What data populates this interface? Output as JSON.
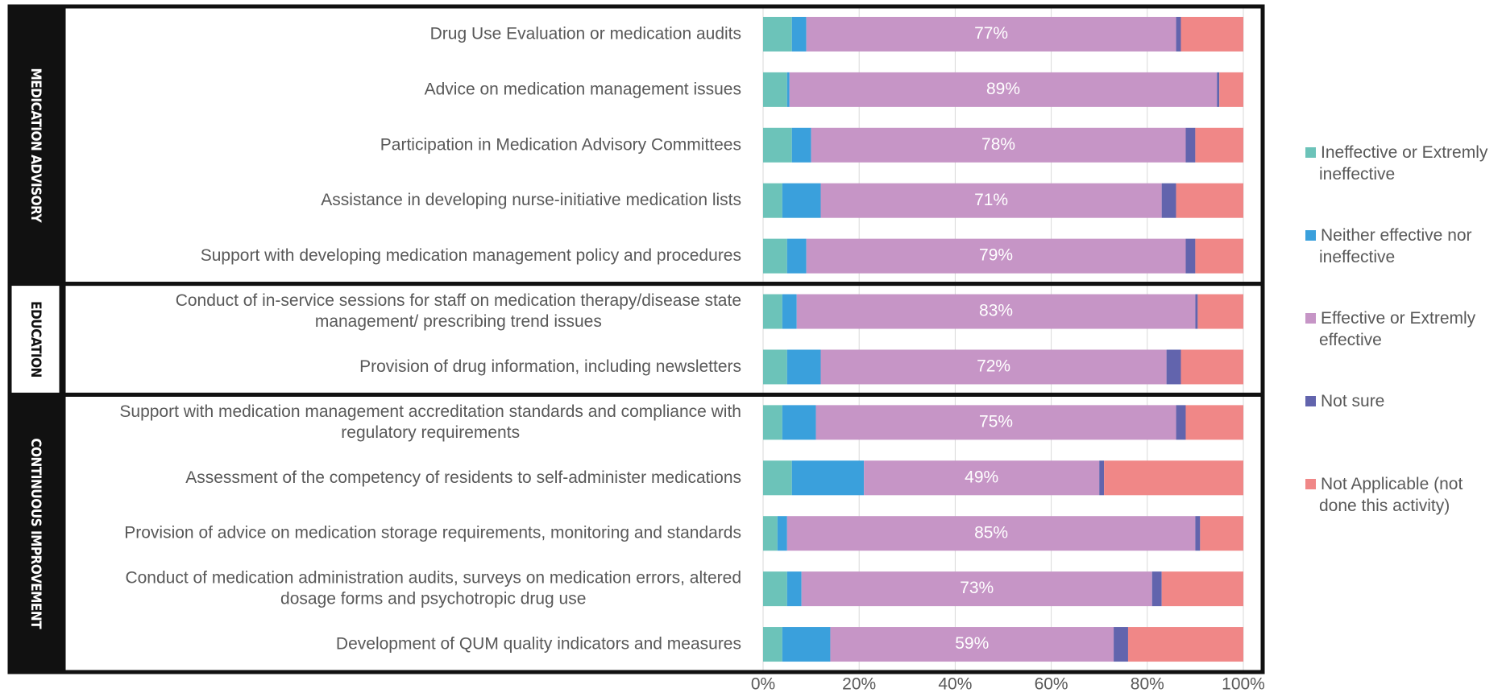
{
  "chart_data": {
    "type": "stacked_bar_horizontal",
    "groups": [
      {
        "name": "MEDICATION ADVISORY",
        "categories": [
          "Drug Use Evaluation or medication audits",
          "Advice on medication management issues",
          "Participation in Medication Advisory Committees",
          "Assistance in developing nurse-initiative medication lists",
          "Support with developing medication management policy and procedures"
        ]
      },
      {
        "name": "EDUCATION",
        "categories": [
          "Conduct of in-service sessions for staff on medication therapy/disease state management/ prescribing trend issues",
          "Provision of drug information, including newsletters"
        ]
      },
      {
        "name": "CONTINUOUS IMPROVEMENT",
        "categories": [
          "Support with medication management accreditation standards and compliance with regulatory requirements",
          "Assessment of the competency of residents to self-administer medications",
          "Provision of advice on medication storage requirements, monitoring and standards",
          "Conduct of medication administration audits, surveys on medication errors, altered dosage forms and psychotropic drug use",
          "Development of QUM quality indicators and measures"
        ]
      }
    ],
    "series": [
      {
        "name": "Ineffective or Extremly ineffective",
        "color": "#6cc3b9",
        "values": [
          6,
          5,
          6,
          4,
          5,
          4,
          5,
          4,
          6,
          3,
          5,
          4
        ]
      },
      {
        "name": "Neither effective nor ineffective",
        "color": "#3aa0dc",
        "values": [
          3,
          0.5,
          4,
          8,
          4,
          3,
          7,
          7,
          15,
          2,
          3,
          10
        ]
      },
      {
        "name": "Effective or Extremly effective",
        "color": "#c695c6",
        "values": [
          77,
          89,
          78,
          71,
          79,
          83,
          72,
          75,
          49,
          85,
          73,
          59
        ],
        "value_labels": [
          "77%",
          "89%",
          "78%",
          "71%",
          "79%",
          "83%",
          "72%",
          "75%",
          "49%",
          "85%",
          "73%",
          "59%"
        ]
      },
      {
        "name": "Not sure",
        "color": "#6264ad",
        "values": [
          1,
          0.5,
          2,
          3,
          2,
          0.5,
          3,
          2,
          1,
          1,
          2,
          3
        ]
      },
      {
        "name": "Not Applicable (not done this activity)",
        "color": "#f08787",
        "values": [
          13,
          5,
          10,
          14,
          10,
          9.5,
          13,
          12,
          29,
          9,
          17,
          24
        ]
      }
    ],
    "xlim": [
      0,
      100
    ],
    "xticks": [
      {
        "value": 0,
        "label": "0%"
      },
      {
        "value": 20,
        "label": "20%"
      },
      {
        "value": 40,
        "label": "40%"
      },
      {
        "value": 60,
        "label": "60%"
      },
      {
        "value": 80,
        "label": "80%"
      },
      {
        "value": 100,
        "label": "100%"
      }
    ],
    "grid": true,
    "legend": "right"
  }
}
